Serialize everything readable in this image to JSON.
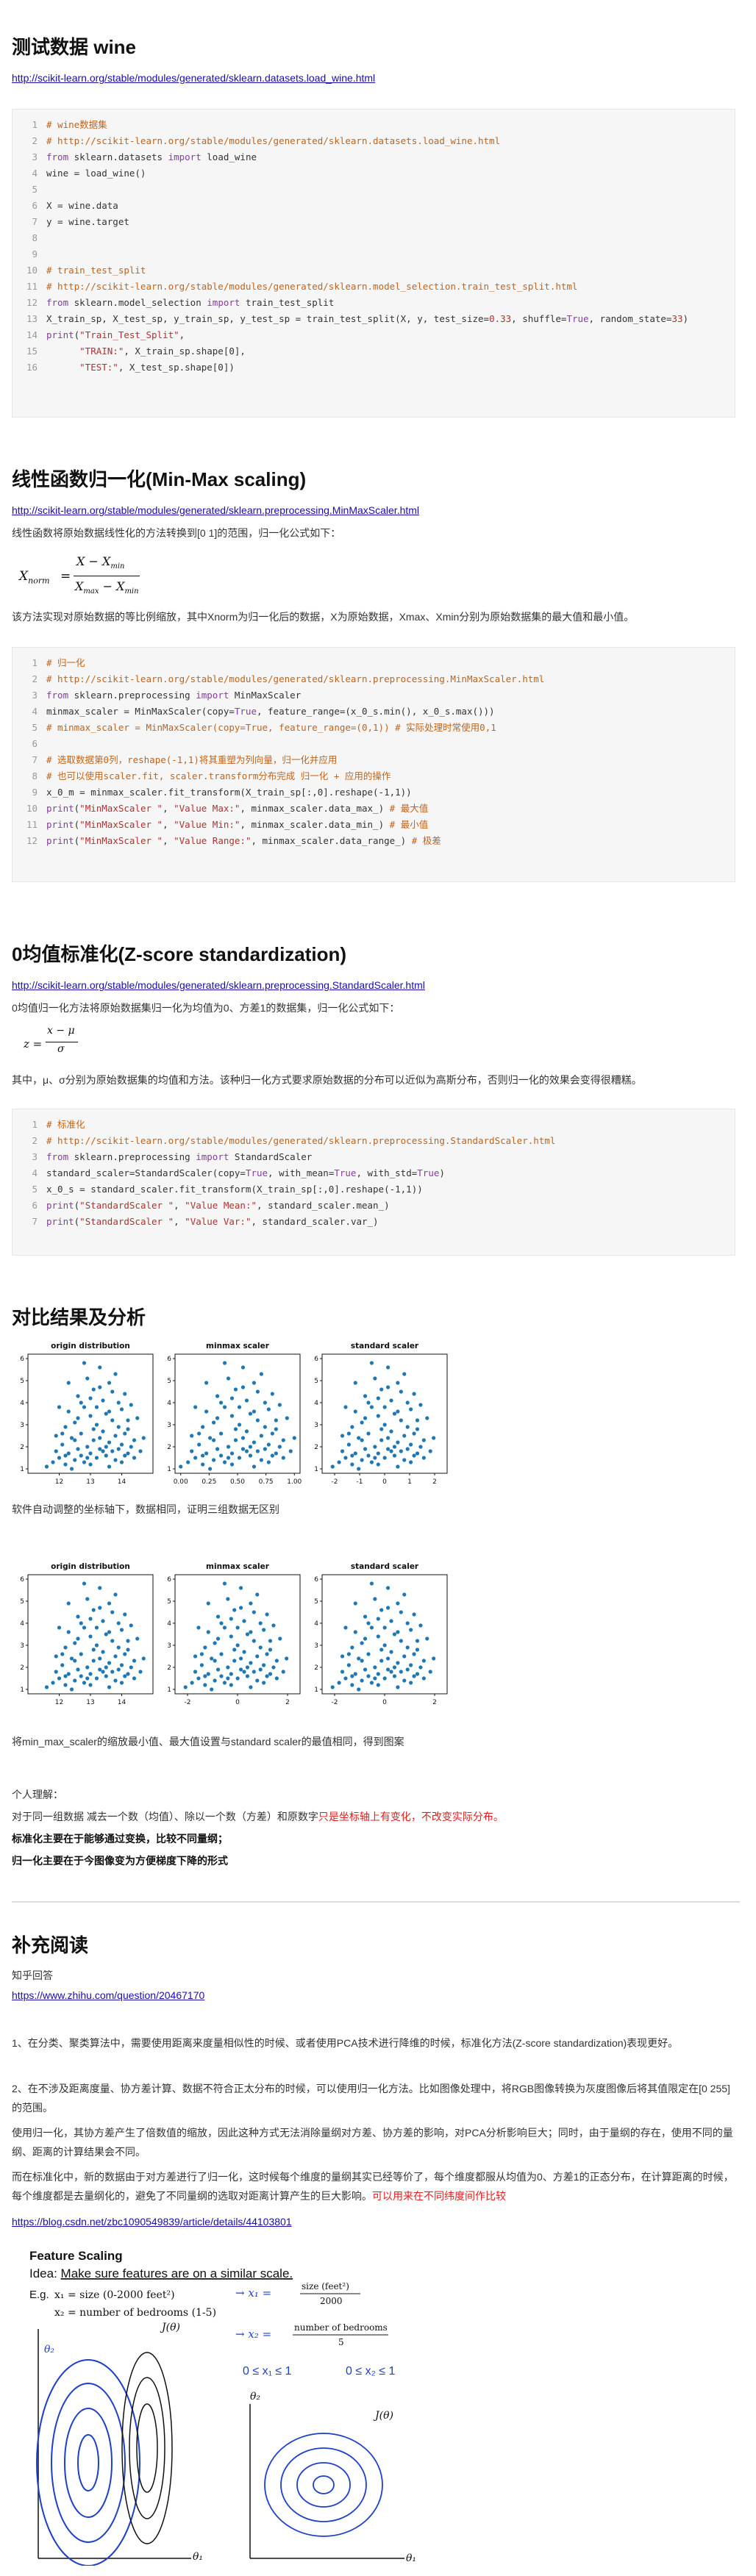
{
  "sections": {
    "wine": {
      "title": "测试数据 wine",
      "link": "http://scikit-learn.org/stable/modules/generated/sklearn.datasets.load_wine.html"
    },
    "minmax": {
      "title": "线性函数归一化(Min-Max scaling)",
      "link": "http://scikit-learn.org/stable/modules/generated/sklearn.preprocessing.MinMaxScaler.html",
      "intro": "线性函数将原始数据线性化的方法转换到[0 1]的范围，归一化公式如下：",
      "desc": "该方法实现对原始数据的等比例缩放，其中Xnorm为归一化后的数据，X为原始数据，Xmax、Xmin分别为原始数据集的最大值和最小值。"
    },
    "zscore": {
      "title": "0均值标准化(Z-score standardization)",
      "link": "http://scikit-learn.org/stable/modules/generated/sklearn.preprocessing.StandardScaler.html",
      "intro": "0均值归一化方法将原始数据集归一化为均值为0、方差1的数据集，归一化公式如下：",
      "desc": "其中，μ、σ分别为原始数据集的均值和方法。该种归一化方式要求原始数据的分布可以近似为高斯分布，否则归一化的效果会变得很糟糕。"
    },
    "compare": {
      "title": "对比结果及分析",
      "note1": "软件自动调整的坐标轴下，数据相同，证明三组数据无区别",
      "note2": "将min_max_scaler的缩放最小值、最大值设置与standard scaler的最值相同，得到图案",
      "personal": "个人理解：",
      "line1a": "对于同一组数据 减去一个数（均值）、除以一个数（方差）和原数字",
      "line1b": "只是坐标轴上有变化，不改变实际分布。",
      "bold1": "标准化主要在于能够通过变换，比较不同量纲；",
      "bold2": "归一化主要在于今图像变为方便梯度下降的形式"
    },
    "reading": {
      "title": "补充阅读",
      "zhihu": "知乎回答",
      "zhihu_link": "https://www.zhihu.com/question/20467170",
      "p1": "1、在分类、聚类算法中，需要使用距离来度量相似性的时候、或者使用PCA技术进行降维的时候，标准化方法(Z-score standardization)表现更好。",
      "p2": "2、在不涉及距离度量、协方差计算、数据不符合正太分布的时候，可以使用归一化方法。比如图像处理中，将RGB图像转换为灰度图像后将其值限定在[0 255]的范围。",
      "p3": "使用归一化，其协方差产生了倍数值的缩放，因此这种方式无法消除量纲对方差、协方差的影响，对PCA分析影响巨大；同时，由于量纲的存在，使用不同的量纲、距离的计算结果会不同。",
      "p4a": "而在标准化中，新的数据由于对方差进行了归一化，这时候每个维度的量纲其实已经等价了，每个维度都服从均值为0、方差1的正态分布，在计算距离的时候，每个维度都是去量纲化的，避免了不同量纲的选取对距离计算产生的巨大影响。",
      "p4b": "可以用来在不同纬度间作比较",
      "csdn_link": "https://blog.csdn.net/zbc1090549839/article/details/44103801"
    }
  },
  "code_blocks": {
    "wine": [
      [
        [
          "cm",
          "# wine数据集"
        ]
      ],
      [
        [
          "cm",
          "# http://scikit-learn.org/stable/modules/generated/sklearn.datasets.load_wine.html"
        ]
      ],
      [
        [
          "kw",
          "from "
        ],
        [
          "tx",
          "sklearn.datasets "
        ],
        [
          "kw",
          "import "
        ],
        [
          "tx",
          "load_wine"
        ]
      ],
      [
        [
          "tx",
          "wine = load_wine()"
        ]
      ],
      [],
      [
        [
          "tx",
          "X = wine.data"
        ]
      ],
      [
        [
          "tx",
          "y = wine.target"
        ]
      ],
      [],
      [],
      [
        [
          "cm",
          "# train_test_split"
        ]
      ],
      [
        [
          "cm",
          "# http://scikit-learn.org/stable/modules/generated/sklearn.model_selection.train_test_split.html"
        ]
      ],
      [
        [
          "kw",
          "from "
        ],
        [
          "tx",
          "sklearn.model_selection "
        ],
        [
          "kw",
          "import "
        ],
        [
          "tx",
          "train_test_split"
        ]
      ],
      [
        [
          "tx",
          "X_train_sp, X_test_sp, y_train_sp, y_test_sp = train_test_split(X, y, test_size="
        ],
        [
          "nm",
          "0.33"
        ],
        [
          "tx",
          ", shuffle="
        ],
        [
          "kw",
          "True"
        ],
        [
          "tx",
          ", random_state="
        ],
        [
          "nm",
          "33"
        ],
        [
          "tx",
          ")"
        ]
      ],
      [
        [
          "kw",
          "print"
        ],
        [
          "tx",
          "("
        ],
        [
          "st",
          "\"Train_Test_Split\""
        ],
        [
          "tx",
          ","
        ]
      ],
      [
        [
          "tx",
          "      "
        ],
        [
          "st",
          "\"TRAIN:\""
        ],
        [
          "tx",
          ", X_train_sp.shape[0],"
        ]
      ],
      [
        [
          "tx",
          "      "
        ],
        [
          "st",
          "\"TEST:\""
        ],
        [
          "tx",
          ", X_test_sp.shape[0])"
        ]
      ]
    ],
    "minmax": [
      [
        [
          "cm",
          "# 归一化"
        ]
      ],
      [
        [
          "cm",
          "# http://scikit-learn.org/stable/modules/generated/sklearn.preprocessing.MinMaxScaler.html"
        ]
      ],
      [
        [
          "kw",
          "from "
        ],
        [
          "tx",
          "sklearn.preprocessing "
        ],
        [
          "kw",
          "import "
        ],
        [
          "tx",
          "MinMaxScaler"
        ]
      ],
      [
        [
          "tx",
          "minmax_scaler = MinMaxScaler(copy="
        ],
        [
          "kw",
          "True"
        ],
        [
          "tx",
          ", feature_range=(x_0_s.min(), x_0_s.max()))"
        ]
      ],
      [
        [
          "cm",
          "# minmax_scaler = MinMaxScaler(copy=True, feature_range=(0,1)) # 实际处理时常使用0,1"
        ]
      ],
      [],
      [
        [
          "cm",
          "# 选取数据第0列，reshape(-1,1)将其重塑为列向量，归一化并应用"
        ]
      ],
      [
        [
          "cm",
          "# 也可以使用scaler.fit, scaler.transform分布完成 归一化 + 应用的操作"
        ]
      ],
      [
        [
          "tx",
          "x_0_m = minmax_scaler.fit_transform(X_train_sp[:,0].reshape(-1,1))"
        ]
      ],
      [
        [
          "kw",
          "print"
        ],
        [
          "tx",
          "("
        ],
        [
          "st",
          "\"MinMaxScaler \""
        ],
        [
          "tx",
          ", "
        ],
        [
          "st",
          "\"Value Max:\""
        ],
        [
          "tx",
          ", minmax_scaler.data_max_) "
        ],
        [
          "cm",
          "# 最大值"
        ]
      ],
      [
        [
          "kw",
          "print"
        ],
        [
          "tx",
          "("
        ],
        [
          "st",
          "\"MinMaxScaler \""
        ],
        [
          "tx",
          ", "
        ],
        [
          "st",
          "\"Value Min:\""
        ],
        [
          "tx",
          ", minmax_scaler.data_min_) "
        ],
        [
          "cm",
          "# 最小值"
        ]
      ],
      [
        [
          "kw",
          "print"
        ],
        [
          "tx",
          "("
        ],
        [
          "st",
          "\"MinMaxScaler \""
        ],
        [
          "tx",
          ", "
        ],
        [
          "st",
          "\"Value Range:\""
        ],
        [
          "tx",
          ", minmax_scaler.data_range_) "
        ],
        [
          "cm",
          "# 极差"
        ]
      ]
    ],
    "zscore": [
      [
        [
          "cm",
          "# 标准化"
        ]
      ],
      [
        [
          "cm",
          "# http://scikit-learn.org/stable/modules/generated/sklearn.preprocessing.StandardScaler.html"
        ]
      ],
      [
        [
          "kw",
          "from "
        ],
        [
          "tx",
          "sklearn.preprocessing "
        ],
        [
          "kw",
          "import "
        ],
        [
          "tx",
          "StandardScaler"
        ]
      ],
      [
        [
          "tx",
          "standard_scaler=StandardScaler(copy="
        ],
        [
          "kw",
          "True"
        ],
        [
          "tx",
          ", with_mean="
        ],
        [
          "kw",
          "True"
        ],
        [
          "tx",
          ", with_std="
        ],
        [
          "kw",
          "True"
        ],
        [
          "tx",
          ")"
        ]
      ],
      [
        [
          "tx",
          "x_0_s = standard_scaler.fit_transform(X_train_sp[:,0].reshape(-1,1))"
        ]
      ],
      [
        [
          "kw",
          "print"
        ],
        [
          "tx",
          "("
        ],
        [
          "st",
          "\"StandardScaler \""
        ],
        [
          "tx",
          ", "
        ],
        [
          "st",
          "\"Value Mean:\""
        ],
        [
          "tx",
          ", standard_scaler.mean_)"
        ]
      ],
      [
        [
          "kw",
          "print"
        ],
        [
          "tx",
          "("
        ],
        [
          "st",
          "\"StandardScaler \""
        ],
        [
          "tx",
          ", "
        ],
        [
          "st",
          "\"Value Var:\""
        ],
        [
          "tx",
          ", standard_scaler.var_)"
        ]
      ]
    ]
  },
  "formulas": {
    "minmax_lhs": "X",
    "minmax_lhs_sub": "norm",
    "minmax_num": "X − X",
    "minmax_num_sub": "min",
    "minmax_den_a": "X",
    "minmax_den_a_sub": "max",
    "minmax_den_b": " − X",
    "minmax_den_b_sub": "min",
    "z_lhs": "z =",
    "z_num": "x − μ",
    "z_den": "σ"
  },
  "chart_data": [
    {
      "type": "scatter",
      "title": "origin distribution",
      "xticks": [
        "12",
        "13",
        "14"
      ],
      "yticks": [
        "1",
        "2",
        "3",
        "4",
        "5",
        "6"
      ],
      "xlim": [
        11,
        15
      ],
      "ylim": [
        0.8,
        6.2
      ],
      "series_ref": "base",
      "transform": "orig"
    },
    {
      "type": "scatter",
      "title": "minmax scaler",
      "xticks": [
        "0.00",
        "0.25",
        "0.50",
        "0.75",
        "1.00"
      ],
      "yticks": [
        "1",
        "2",
        "3",
        "4",
        "5",
        "6"
      ],
      "xlim": [
        -0.05,
        1.05
      ],
      "ylim": [
        0.8,
        6.2
      ],
      "series_ref": "base",
      "transform": "minmax"
    },
    {
      "type": "scatter",
      "title": "standard scaler",
      "xticks": [
        "-2",
        "-1",
        "0",
        "1",
        "2"
      ],
      "yticks": [
        "1",
        "2",
        "3",
        "4",
        "5",
        "6"
      ],
      "xlim": [
        -2.5,
        2.5
      ],
      "ylim": [
        0.8,
        6.2
      ],
      "series_ref": "base",
      "transform": "std"
    },
    {
      "type": "scatter",
      "title": "origin distribution",
      "xticks": [
        "12",
        "13",
        "14"
      ],
      "yticks": [
        "1",
        "2",
        "3",
        "4",
        "5",
        "6"
      ],
      "xlim": [
        11,
        15
      ],
      "ylim": [
        0.8,
        6.2
      ],
      "series_ref": "base",
      "transform": "orig"
    },
    {
      "type": "scatter",
      "title": "minmax scaler",
      "xticks": [
        "-2",
        "0",
        "2"
      ],
      "yticks": [
        "1",
        "2",
        "3",
        "4",
        "5",
        "6"
      ],
      "xlim": [
        -2.5,
        2.5
      ],
      "ylim": [
        0.8,
        6.2
      ],
      "series_ref": "base",
      "transform": "std"
    },
    {
      "type": "scatter",
      "title": "standard scaler",
      "xticks": [
        "-2",
        "0",
        "2"
      ],
      "yticks": [
        "1",
        "2",
        "3",
        "4",
        "5",
        "6"
      ],
      "xlim": [
        -2.5,
        2.5
      ],
      "ylim": [
        0.8,
        6.2
      ],
      "series_ref": "base",
      "transform": "std"
    }
  ],
  "scatter_base": [
    [
      11.6,
      1.1
    ],
    [
      11.8,
      1.3
    ],
    [
      11.9,
      1.8
    ],
    [
      12.0,
      1.5
    ],
    [
      12.1,
      2.1
    ],
    [
      12.2,
      1.2
    ],
    [
      12.2,
      2.9
    ],
    [
      12.3,
      1.7
    ],
    [
      12.3,
      3.6
    ],
    [
      12.4,
      2.4
    ],
    [
      12.5,
      1.4
    ],
    [
      12.5,
      3.1
    ],
    [
      12.6,
      1.9
    ],
    [
      12.6,
      4.3
    ],
    [
      12.7,
      1.6
    ],
    [
      12.7,
      2.6
    ],
    [
      12.8,
      3.8
    ],
    [
      12.8,
      1.3
    ],
    [
      12.9,
      2.0
    ],
    [
      12.9,
      5.1
    ],
    [
      13.0,
      1.7
    ],
    [
      13.0,
      3.4
    ],
    [
      13.1,
      2.3
    ],
    [
      13.1,
      4.6
    ],
    [
      13.2,
      1.5
    ],
    [
      13.2,
      3.0
    ],
    [
      13.3,
      1.9
    ],
    [
      13.3,
      5.6
    ],
    [
      13.4,
      2.7
    ],
    [
      13.4,
      4.1
    ],
    [
      13.5,
      1.6
    ],
    [
      13.5,
      3.5
    ],
    [
      13.6,
      2.2
    ],
    [
      13.6,
      4.9
    ],
    [
      13.7,
      1.8
    ],
    [
      13.7,
      3.2
    ],
    [
      13.8,
      2.5
    ],
    [
      13.8,
      1.4
    ],
    [
      13.9,
      4.0
    ],
    [
      13.9,
      1.9
    ],
    [
      14.0,
      3.7
    ],
    [
      14.0,
      2.1
    ],
    [
      14.1,
      1.6
    ],
    [
      14.1,
      4.4
    ],
    [
      14.2,
      2.8
    ],
    [
      14.2,
      1.7
    ],
    [
      14.3,
      3.9
    ],
    [
      14.3,
      2.0
    ],
    [
      14.4,
      1.5
    ],
    [
      14.5,
      3.3
    ],
    [
      14.6,
      1.8
    ],
    [
      14.7,
      2.4
    ],
    [
      12.4,
      1.0
    ],
    [
      13.0,
      1.2
    ],
    [
      13.6,
      1.1
    ],
    [
      12.0,
      3.8
    ],
    [
      13.3,
      4.7
    ],
    [
      12.8,
      5.8
    ],
    [
      13.8,
      5.3
    ],
    [
      12.5,
      2.3
    ],
    [
      13.1,
      2.8
    ],
    [
      13.5,
      2.0
    ],
    [
      12.1,
      2.6
    ],
    [
      14.0,
      1.3
    ],
    [
      13.2,
      3.8
    ],
    [
      12.9,
      1.5
    ],
    [
      13.7,
      4.5
    ],
    [
      12.3,
      4.9
    ],
    [
      13.4,
      1.8
    ],
    [
      14.2,
      3.2
    ],
    [
      12.6,
      3.3
    ],
    [
      13.9,
      2.9
    ],
    [
      12.2,
      1.6
    ],
    [
      13.6,
      3.6
    ],
    [
      14.4,
      2.3
    ],
    [
      11.9,
      2.5
    ],
    [
      13.0,
      4.2
    ],
    [
      12.7,
      4.0
    ],
    [
      14.1,
      2.6
    ],
    [
      13.3,
      2.4
    ]
  ],
  "sketch": {
    "title": "Feature Scaling",
    "idea_a": "Idea: ",
    "idea_b": "Make sure features are on a similar scale.",
    "eg": "E.g.",
    "x1_def": "x₁ = size (0-2000 feet²)",
    "x2_def": "x₂ = number of bedrooms (1-5)",
    "x1_rhs_num": "size (feet²)",
    "x1_rhs_den": "2000",
    "x2_rhs_num": "number of bedrooms",
    "x2_rhs_den": "5",
    "range1": "0 ≤ x₁ ≤ 1",
    "range2": "0 ≤ x₂ ≤ 1",
    "theta1": "θ₁",
    "theta2": "θ₂",
    "jtheta": "J(θ)",
    "x1_lab": "→ x₁ =",
    "x2_lab": "→ x₂ ="
  }
}
